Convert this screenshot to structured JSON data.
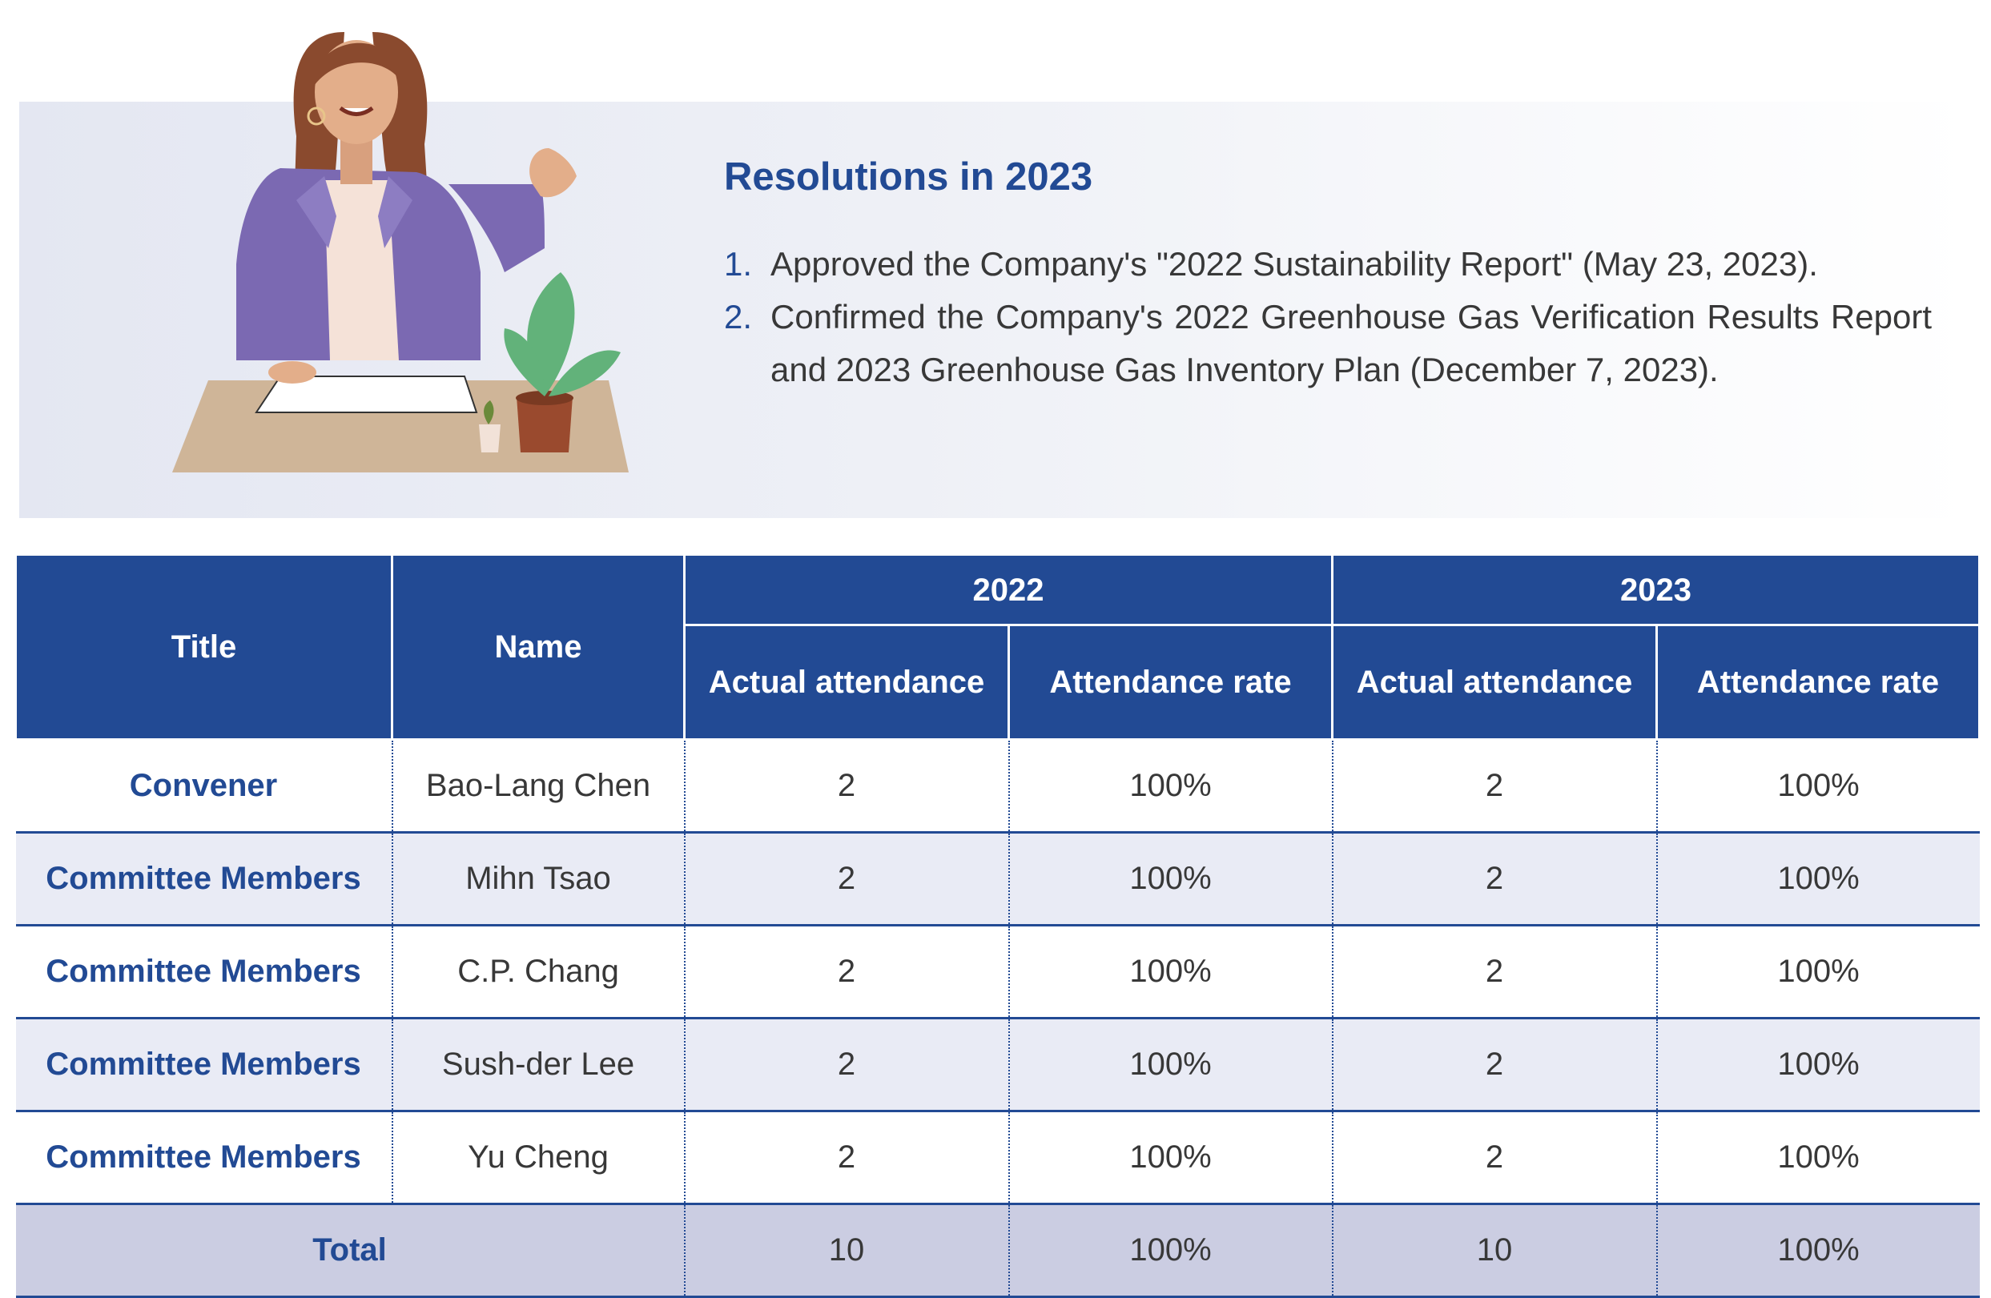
{
  "resolutions": {
    "title": "Resolutions in 2023",
    "items": [
      {
        "num": "1.",
        "text": "Approved the Company's \"2022 Sustainability Report\" (May 23, 2023)."
      },
      {
        "num": "2.",
        "text": "Confirmed the Company's 2022 Greenhouse Gas Verification Results Report and 2023 Greenhouse Gas Inventory Plan (December 7, 2023)."
      }
    ]
  },
  "table": {
    "headers": {
      "title": "Title",
      "name": "Name",
      "year1": "2022",
      "year2": "2023",
      "actual": "Actual attendance",
      "rate": "Attendance rate"
    },
    "rows": [
      {
        "title": "Convener",
        "name": "Bao-Lang Chen",
        "a2022": "2",
        "r2022": "100%",
        "a2023": "2",
        "r2023": "100%"
      },
      {
        "title": "Committee Members",
        "name": "Mihn Tsao",
        "a2022": "2",
        "r2022": "100%",
        "a2023": "2",
        "r2023": "100%"
      },
      {
        "title": "Committee Members",
        "name": "C.P. Chang",
        "a2022": "2",
        "r2022": "100%",
        "a2023": "2",
        "r2023": "100%"
      },
      {
        "title": "Committee Members",
        "name": "Sush-der Lee",
        "a2022": "2",
        "r2022": "100%",
        "a2023": "2",
        "r2023": "100%"
      },
      {
        "title": "Committee Members",
        "name": "Yu Cheng",
        "a2022": "2",
        "r2022": "100%",
        "a2023": "2",
        "r2023": "100%"
      }
    ],
    "total": {
      "label": "Total",
      "a2022": "10",
      "r2022": "100%",
      "a2023": "10",
      "r2023": "100%"
    }
  },
  "colors": {
    "accent": "#224a94",
    "row_alt": "#e9ebf5",
    "total_bg": "#cbcde2"
  }
}
